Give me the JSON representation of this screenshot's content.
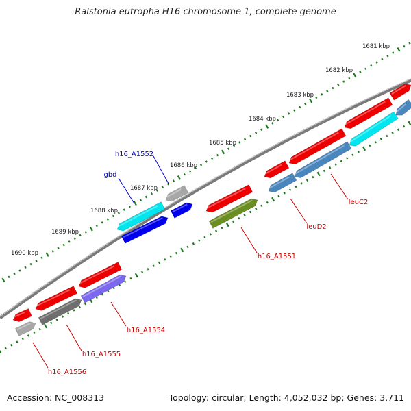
{
  "title": "Ralstonia eutropha H16 chromosome 1, complete genome",
  "footer": {
    "accession": "Accession: NC_008313",
    "topology": "Topology: circular; Length: 4,052,032 bp; Genes: 3,711"
  },
  "kbp_labels": [
    "1681 kbp",
    "1682 kbp",
    "1683 kbp",
    "1684 kbp",
    "1685 kbp",
    "1686 kbp",
    "1687 kbp",
    "1688 kbp",
    "1689 kbp",
    "1690 kbp"
  ],
  "gene_labels": [
    {
      "name": "h16_A1552",
      "color": "#0000cc"
    },
    {
      "name": "gbd",
      "color": "#0000cc"
    },
    {
      "name": "leuC2",
      "color": "#cc0000"
    },
    {
      "name": "leuD2",
      "color": "#cc0000"
    },
    {
      "name": "h16_A1551",
      "color": "#cc0000"
    },
    {
      "name": "h16_A1554",
      "color": "#cc0000"
    },
    {
      "name": "h16_A1555",
      "color": "#cc0000"
    },
    {
      "name": "h16_A1556",
      "color": "#cc0000"
    }
  ],
  "colors": {
    "red": "#ee0000",
    "cyan": "#00e5ee",
    "blue": "#0000ee",
    "grey": "#a8a8a8",
    "darkgrey": "#6e6e6e",
    "steel": "#4a86be",
    "olive": "#6b8e23",
    "purple": "#7b68ee",
    "backbone": "#888888",
    "ticks": "#1a7a1a"
  }
}
